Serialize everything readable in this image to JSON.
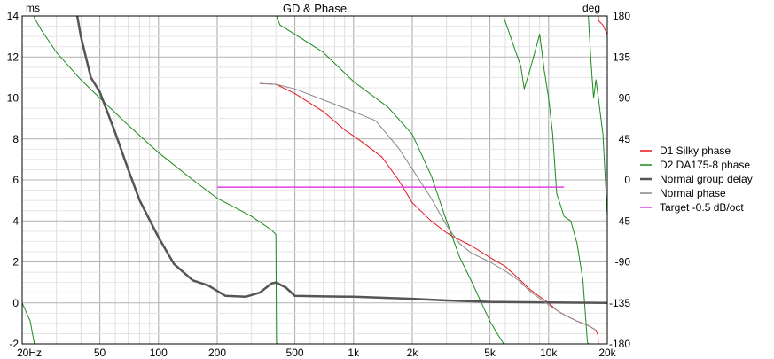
{
  "chart_data": {
    "type": "line",
    "title": "GD & Phase",
    "left_axis": {
      "label": "ms",
      "range": [
        -2,
        14
      ],
      "ticks": [
        -2,
        0,
        2,
        4,
        6,
        8,
        10,
        12,
        14
      ]
    },
    "right_axis": {
      "label": "deg",
      "range": [
        -180,
        180
      ],
      "ticks": [
        -180,
        -135,
        -90,
        -45,
        0,
        45,
        90,
        135,
        180
      ]
    },
    "x_axis": {
      "scale": "log",
      "range": [
        20,
        20000
      ],
      "ticks": [
        {
          "value": 20,
          "label": "20Hz"
        },
        {
          "value": 50,
          "label": "50"
        },
        {
          "value": 100,
          "label": "100"
        },
        {
          "value": 200,
          "label": "200"
        },
        {
          "value": 500,
          "label": "500"
        },
        {
          "value": 1000,
          "label": "1k"
        },
        {
          "value": 2000,
          "label": "2k"
        },
        {
          "value": 5000,
          "label": "5k"
        },
        {
          "value": 10000,
          "label": "10k"
        },
        {
          "value": 20000,
          "label": "20k"
        }
      ]
    },
    "grid": true,
    "legend_position": "right",
    "series": [
      {
        "name": "D1 Silky phase",
        "color": "#e8141e",
        "width": 1,
        "axis": "right",
        "points": [
          [
            330,
            106
          ],
          [
            400,
            105
          ],
          [
            500,
            95
          ],
          [
            700,
            75
          ],
          [
            900,
            55
          ],
          [
            1100,
            42
          ],
          [
            1400,
            25
          ],
          [
            1700,
            0
          ],
          [
            2000,
            -25
          ],
          [
            2500,
            -45
          ],
          [
            3000,
            -58
          ],
          [
            3300,
            -63
          ],
          [
            4000,
            -72
          ],
          [
            5000,
            -85
          ],
          [
            6000,
            -95
          ],
          [
            7000,
            -108
          ],
          [
            8000,
            -120
          ],
          [
            9000,
            -128
          ],
          [
            10000,
            -135
          ],
          [
            11000,
            -143
          ],
          [
            12000,
            -148
          ],
          [
            14000,
            -155
          ],
          [
            16000,
            -160
          ],
          [
            17500,
            -165
          ],
          [
            17900,
            -170
          ],
          [
            18000,
            175
          ],
          [
            19000,
            170
          ],
          [
            20000,
            160
          ]
        ]
      },
      {
        "name": "D2 DA175-8 phase",
        "color": "#1a8a1a",
        "width": 1,
        "axis": "right",
        "points": [
          [
            20,
            -135
          ],
          [
            22,
            -155
          ],
          [
            23,
            -178
          ],
          [
            23.1,
            178
          ],
          [
            25,
            165
          ],
          [
            30,
            140
          ],
          [
            40,
            110
          ],
          [
            50,
            90
          ],
          [
            70,
            60
          ],
          [
            100,
            30
          ],
          [
            150,
            0
          ],
          [
            200,
            -20
          ],
          [
            300,
            -40
          ],
          [
            380,
            -55
          ],
          [
            400,
            -60
          ],
          [
            403,
            -178
          ],
          [
            405,
            178
          ],
          [
            420,
            170
          ],
          [
            500,
            160
          ],
          [
            700,
            140
          ],
          [
            1000,
            108
          ],
          [
            1500,
            80
          ],
          [
            2000,
            50
          ],
          [
            2500,
            5
          ],
          [
            3000,
            -45
          ],
          [
            3500,
            -85
          ],
          [
            4000,
            -110
          ],
          [
            5000,
            -155
          ],
          [
            5500,
            -170
          ],
          [
            5800,
            -178
          ],
          [
            5900,
            178
          ],
          [
            6200,
            165
          ],
          [
            6800,
            140
          ],
          [
            7200,
            125
          ],
          [
            7500,
            100
          ],
          [
            8000,
            120
          ],
          [
            8500,
            140
          ],
          [
            9000,
            160
          ],
          [
            9500,
            120
          ],
          [
            10000,
            90
          ],
          [
            10500,
            50
          ],
          [
            11000,
            -15
          ],
          [
            12000,
            -40
          ],
          [
            13000,
            -45
          ],
          [
            14000,
            -70
          ],
          [
            15000,
            -110
          ],
          [
            15800,
            -178
          ],
          [
            16000,
            178
          ],
          [
            16500,
            130
          ],
          [
            17000,
            90
          ],
          [
            17500,
            110
          ],
          [
            18000,
            90
          ],
          [
            19000,
            50
          ],
          [
            20000,
            -40
          ]
        ]
      },
      {
        "name": "Normal group delay",
        "color": "#555555",
        "width": 2.5,
        "axis": "left",
        "points": [
          [
            38,
            14.2
          ],
          [
            40,
            13
          ],
          [
            45,
            11
          ],
          [
            50,
            10.3
          ],
          [
            60,
            8.3
          ],
          [
            70,
            6.5
          ],
          [
            80,
            5.0
          ],
          [
            100,
            3.2
          ],
          [
            120,
            1.9
          ],
          [
            150,
            1.1
          ],
          [
            180,
            0.85
          ],
          [
            220,
            0.35
          ],
          [
            280,
            0.3
          ],
          [
            330,
            0.5
          ],
          [
            380,
            0.95
          ],
          [
            400,
            1.0
          ],
          [
            450,
            0.75
          ],
          [
            500,
            0.35
          ],
          [
            700,
            0.32
          ],
          [
            1000,
            0.3
          ],
          [
            2000,
            0.2
          ],
          [
            3000,
            0.12
          ],
          [
            5000,
            0.05
          ],
          [
            10000,
            0.02
          ],
          [
            20000,
            0.0
          ]
        ]
      },
      {
        "name": "Normal phase",
        "color": "#888888",
        "width": 1,
        "axis": "right",
        "points": [
          [
            330,
            106
          ],
          [
            400,
            105
          ],
          [
            500,
            100
          ],
          [
            700,
            88
          ],
          [
            1000,
            75
          ],
          [
            1300,
            65
          ],
          [
            1700,
            35
          ],
          [
            2000,
            12
          ],
          [
            2500,
            -20
          ],
          [
            3000,
            -50
          ],
          [
            3500,
            -70
          ],
          [
            4000,
            -80
          ],
          [
            5000,
            -90
          ],
          [
            6000,
            -100
          ],
          [
            7000,
            -110
          ],
          [
            8000,
            -122
          ],
          [
            9000,
            -130
          ],
          [
            10000,
            -137
          ],
          [
            11000,
            -143
          ],
          [
            12000,
            -148
          ],
          [
            14000,
            -155
          ],
          [
            16000,
            -160
          ],
          [
            17500,
            -165
          ]
        ]
      },
      {
        "name": "Target -0.5 dB/oct",
        "color": "#e040e0",
        "width": 1.5,
        "axis": "left",
        "points": [
          [
            200,
            5.65
          ],
          [
            12000,
            5.65
          ]
        ]
      }
    ]
  }
}
